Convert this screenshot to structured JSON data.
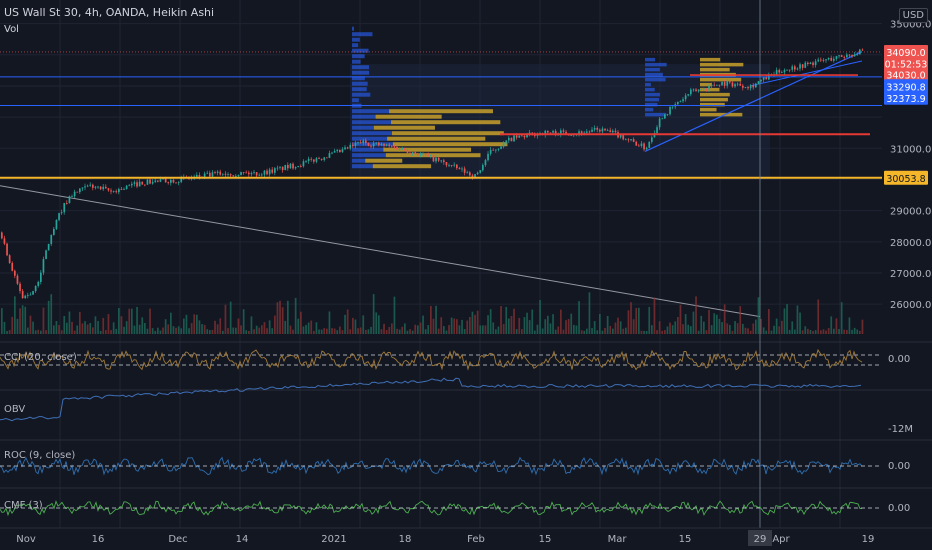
{
  "header": {
    "symbol_line": "US Wall St 30, 4h, OANDA, Heikin Ashi",
    "volume_label": "Vol",
    "currency": "USD"
  },
  "indicators": {
    "cci": "CCI (20, close)",
    "obv": "OBV",
    "roc": "ROC (9, close)",
    "cmf": "CMF (3)"
  },
  "colors": {
    "background": "#131722",
    "up": "#26a69a",
    "down": "#ef5350",
    "blue_line": "#2962ff",
    "orange_line": "#f5b62a",
    "red_line": "#e53935",
    "grid": "#1f2433"
  },
  "chart_data": {
    "type": "candlestick",
    "price_axis_ticks": [
      "35000.0",
      "31000.0",
      "29000.0",
      "28000.0",
      "27000.0",
      "26000.0"
    ],
    "price_badges": [
      {
        "label": "34090.0",
        "value": 34090,
        "color": "#ef5350",
        "text_color": "#ffffff"
      },
      {
        "label": "01:52:53",
        "value": 33720,
        "color": "#ef5350",
        "text_color": "#ffffff"
      },
      {
        "label": "34030.0",
        "value": 33360,
        "color": "#ef5350",
        "text_color": "#ffffff"
      },
      {
        "label": "33290.8",
        "value": 32990,
        "color": "#2962ff",
        "text_color": "#ffffff"
      },
      {
        "label": "32373.9",
        "value": 32620,
        "color": "#2962ff",
        "text_color": "#ffffff"
      },
      {
        "label": "30053.8",
        "value": 30053.8,
        "color": "#f5b62a",
        "text_color": "#131722"
      }
    ],
    "x_labels": [
      "Nov",
      "16",
      "Dec",
      "14",
      "2021",
      "18",
      "Feb",
      "15",
      "Mar",
      "15",
      "29",
      "Apr",
      "19"
    ],
    "horizontal_lines": [
      {
        "name": "resistance-blue-upper",
        "value": 33290.8,
        "color": "#2962ff"
      },
      {
        "name": "resistance-blue-lower",
        "value": 32373.9,
        "color": "#2962ff"
      },
      {
        "name": "support-orange",
        "value": 30053.8,
        "color": "#f5b62a"
      }
    ],
    "price_range": [
      25300,
      35500
    ],
    "indicator_ticks": {
      "cci": "0.00",
      "obv": "-12M",
      "roc": "0.00",
      "cmf": "0.00"
    },
    "cursor_time_label": "29"
  }
}
